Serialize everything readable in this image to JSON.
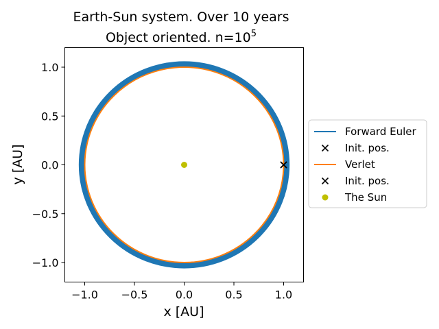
{
  "chart_data": {
    "type": "line",
    "title": {
      "line1": "Earth-Sun system. Over 10 years",
      "line2_prefix": "Object oriented. n=10",
      "line2_exponent": "5"
    },
    "xlabel": "x [AU]",
    "ylabel": "y [AU]",
    "xlim": [
      -1.2,
      1.2
    ],
    "ylim": [
      -1.2,
      1.2
    ],
    "xticks": [
      -1.0,
      -0.5,
      0.0,
      0.5,
      1.0
    ],
    "xtick_labels": [
      "−1.0",
      "−0.5",
      "0.0",
      "0.5",
      "1.0"
    ],
    "yticks": [
      -1.0,
      -0.5,
      0.0,
      0.5,
      1.0
    ],
    "ytick_labels": [
      "−1.0",
      "−0.5",
      "0.0",
      "0.5",
      "1.0"
    ],
    "grid": false,
    "series": [
      {
        "name": "Forward Euler",
        "kind": "orbit",
        "inner_radius": 1.0,
        "outer_radius": 1.06,
        "center": [
          0.0,
          0.0
        ],
        "color": "#1f77b4"
      },
      {
        "name": "Init. pos.",
        "kind": "marker",
        "marker": "x",
        "x": [
          1.0
        ],
        "y": [
          0.0
        ],
        "color": "#000000"
      },
      {
        "name": "Verlet",
        "kind": "orbit",
        "radius": 1.0,
        "center": [
          0.0,
          0.0
        ],
        "color": "#ff7f0e"
      },
      {
        "name": "Init. pos.",
        "kind": "marker",
        "marker": "x",
        "x": [
          1.0
        ],
        "y": [
          0.0
        ],
        "color": "#000000"
      },
      {
        "name": "The Sun",
        "kind": "marker",
        "marker": "o",
        "x": [
          0.0
        ],
        "y": [
          0.0
        ],
        "color": "#bfbf00"
      }
    ],
    "legend": {
      "position": "center-right-outside",
      "entries": [
        {
          "label": "Forward Euler",
          "symbol": "line",
          "color": "#1f77b4"
        },
        {
          "label": "Init. pos.",
          "symbol": "x",
          "color": "#000000"
        },
        {
          "label": "Verlet",
          "symbol": "line",
          "color": "#ff7f0e"
        },
        {
          "label": "Init. pos.",
          "symbol": "x",
          "color": "#000000"
        },
        {
          "label": "The Sun",
          "symbol": "o",
          "color": "#bfbf00"
        }
      ]
    }
  }
}
